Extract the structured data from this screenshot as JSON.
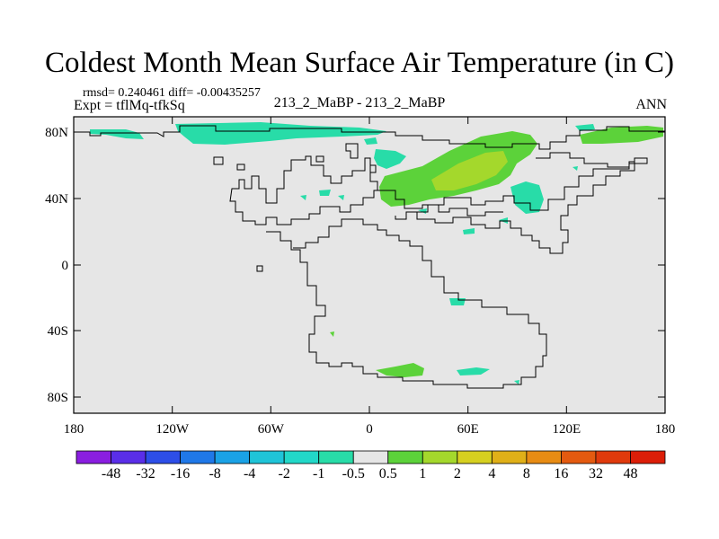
{
  "title": "Coldest Month Mean Surface Air Temperature (in C)",
  "stats_line": "rmsd= 0.240461 diff= -0.00435257",
  "experiment_line": "Expt = tflMq-tfkSq",
  "center_label": "213_2_MaBP - 213_2_MaBP",
  "right_label": "ANN",
  "y_ticks": [
    "80N",
    "40N",
    "0",
    "40S",
    "80S"
  ],
  "x_ticks": [
    "180",
    "120W",
    "60W",
    "0",
    "60E",
    "120E",
    "180"
  ],
  "legend": {
    "labels": [
      "-48",
      "-32",
      "-16",
      "-8",
      "-4",
      "-2",
      "-1",
      "-0.5",
      "0.5",
      "1",
      "2",
      "4",
      "8",
      "16",
      "32",
      "48"
    ],
    "colors": [
      "#8a1ee0",
      "#5a2ee8",
      "#2d4ee8",
      "#1f78e8",
      "#1aa2e6",
      "#1fc4d8",
      "#22d8c8",
      "#28dca8",
      "#e6e6e6",
      "#5cd23a",
      "#a4d82c",
      "#d6d020",
      "#e0b018",
      "#e88c14",
      "#e45a10",
      "#e03a0c",
      "#dc1e08"
    ]
  },
  "colors": {
    "map_background": "#e6e6e6",
    "coastline": "#000000",
    "teal_anomaly": "#28dca8",
    "green_anomaly": "#5cd23a",
    "lime_anomaly": "#a4d82c"
  }
}
